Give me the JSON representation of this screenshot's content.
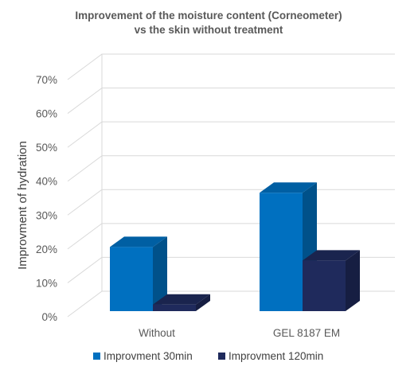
{
  "chart_data": {
    "type": "bar",
    "title_lines": [
      "Improvement of the moisture content (Corneometer)",
      "vs the skin without treatment"
    ],
    "ylabel": "Improvment of hydration",
    "xlabel": "",
    "categories": [
      "Without",
      "GEL 8187 EM"
    ],
    "series": [
      {
        "name": "Improvment 30min",
        "values": [
          22,
          38
        ],
        "color": "#0070c0"
      },
      {
        "name": "Improvment 120min",
        "values": [
          5,
          18
        ],
        "color": "#1f2a5c"
      }
    ],
    "ylim": [
      0,
      70
    ],
    "yticks": [
      "0%",
      "10%",
      "20%",
      "30%",
      "40%",
      "50%",
      "60%",
      "70%"
    ],
    "grid": true,
    "three_d": true,
    "legend_position": "bottom"
  }
}
